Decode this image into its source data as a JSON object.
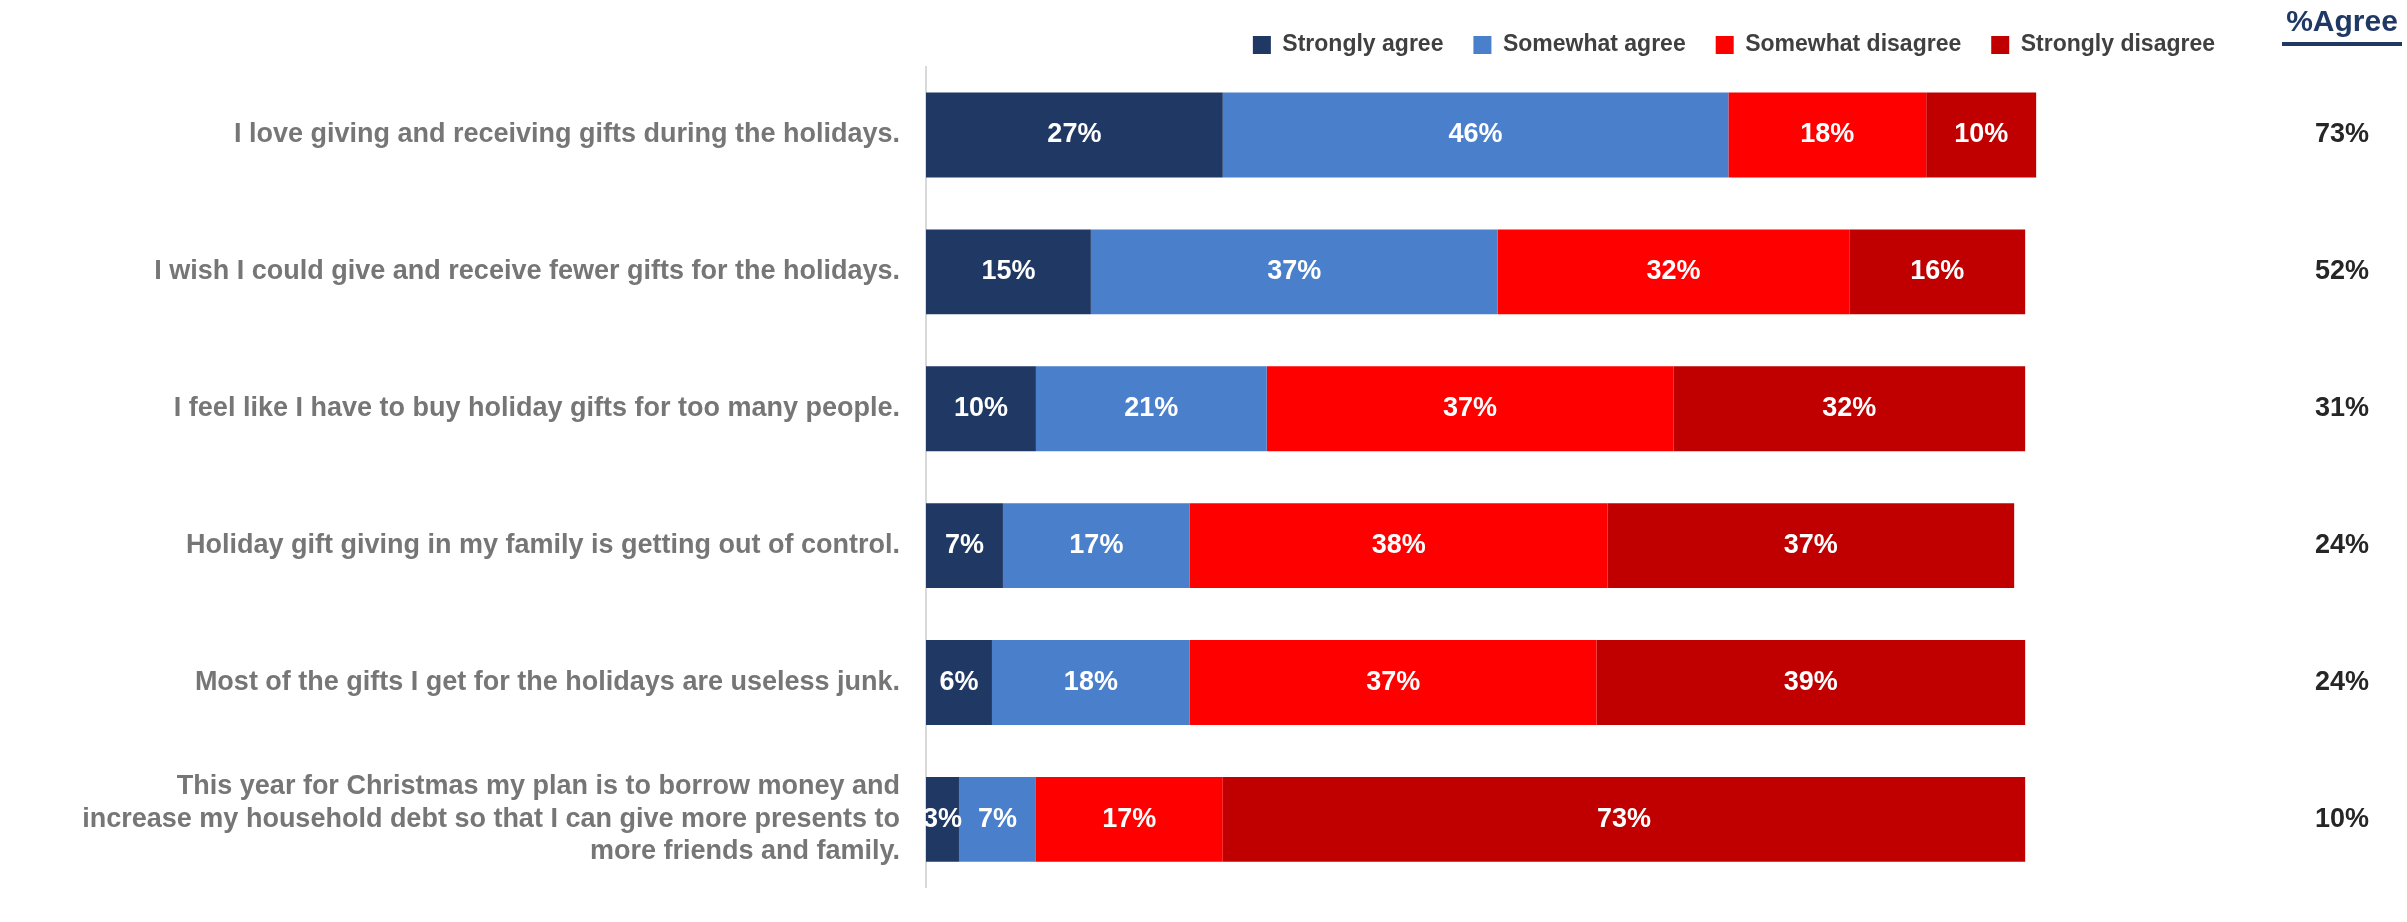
{
  "chart_data": {
    "type": "bar",
    "orientation": "horizontal",
    "stacked": true,
    "tick_labels": "y",
    "legend": "top right",
    "categories": [
      "I love giving and receiving gifts during the holidays.",
      "I wish I could give and receive fewer gifts for the holidays.",
      "I feel like I have to buy holiday gifts for too many people.",
      "Holiday gift giving in my family is getting out of control.",
      "Most of the gifts I get for the holidays are useless junk.",
      "This year for Christmas my plan is to borrow money and increase my household debt so that I can give more presents to more friends and family."
    ],
    "series": [
      {
        "name": "Strongly agree",
        "color": "#1f3864",
        "values": [
          27,
          15,
          10,
          7,
          6,
          3
        ],
        "value_labels": [
          "27%",
          "15%",
          "10%",
          "7%",
          "6%",
          "3%"
        ]
      },
      {
        "name": "Somewhat agree",
        "color": "#4a7fcb",
        "values": [
          46,
          37,
          21,
          17,
          18,
          7
        ],
        "value_labels": [
          "46%",
          "37%",
          "21%",
          "17%",
          "18%",
          "7%"
        ]
      },
      {
        "name": "Somewhat disagree",
        "color": "#ff0000",
        "values": [
          18,
          32,
          37,
          38,
          37,
          17
        ],
        "value_labels": [
          "18%",
          "32%",
          "37%",
          "38%",
          "37%",
          "17%"
        ]
      },
      {
        "name": "Strongly disagree",
        "color": "#c00000",
        "values": [
          10,
          16,
          32,
          37,
          39,
          73
        ],
        "value_labels": [
          "10%",
          "16%",
          "32%",
          "37%",
          "39%",
          "73%"
        ]
      }
    ],
    "annotations": [
      "%Agree",
      "73%",
      "52%",
      "31%",
      "24%",
      "24%",
      "10%"
    ]
  }
}
